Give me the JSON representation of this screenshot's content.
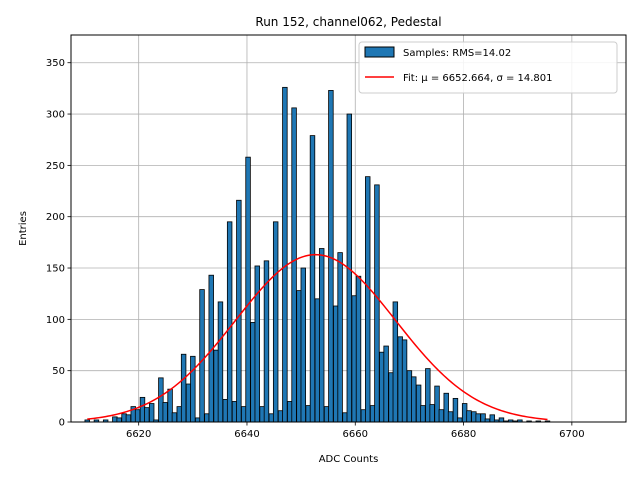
{
  "chart_data": {
    "type": "bar",
    "title": "Run 152, channel062, Pedestal",
    "xlabel": "ADC Counts",
    "ylabel": "Entries",
    "xlim": [
      6607.5,
      6710
    ],
    "ylim": [
      0,
      377
    ],
    "xticks": [
      6620,
      6640,
      6660,
      6680,
      6700
    ],
    "yticks": [
      0,
      50,
      100,
      150,
      200,
      250,
      300,
      350
    ],
    "grid": true,
    "legend_position": "top-right",
    "bin_width": 0.85,
    "colors": {
      "bar": "#1f77b4",
      "edge": "#000000",
      "fit": "#ff0000",
      "grid": "#b0b0b0"
    },
    "series": [
      {
        "name": "Samples: RMS=14.02",
        "kind": "histogram",
        "bins": [
          [
            6610.5,
            2
          ],
          [
            6611.3,
            0
          ],
          [
            6612.2,
            2
          ],
          [
            6613.0,
            0
          ],
          [
            6613.9,
            2
          ],
          [
            6614.7,
            0
          ],
          [
            6615.6,
            5
          ],
          [
            6616.4,
            4
          ],
          [
            6617.3,
            8
          ],
          [
            6618.1,
            7
          ],
          [
            6619.0,
            15
          ],
          [
            6619.8,
            12
          ],
          [
            6620.7,
            24
          ],
          [
            6621.5,
            14
          ],
          [
            6622.4,
            18
          ],
          [
            6623.2,
            2
          ],
          [
            6624.1,
            43
          ],
          [
            6624.9,
            19
          ],
          [
            6625.8,
            32
          ],
          [
            6626.6,
            9
          ],
          [
            6627.5,
            15
          ],
          [
            6628.3,
            66
          ],
          [
            6629.2,
            37
          ],
          [
            6630.0,
            64
          ],
          [
            6630.9,
            4
          ],
          [
            6631.7,
            129
          ],
          [
            6632.6,
            8
          ],
          [
            6633.4,
            143
          ],
          [
            6634.3,
            70
          ],
          [
            6635.1,
            117
          ],
          [
            6636.0,
            22
          ],
          [
            6636.8,
            195
          ],
          [
            6637.7,
            20
          ],
          [
            6638.5,
            216
          ],
          [
            6639.4,
            15
          ],
          [
            6640.2,
            258
          ],
          [
            6641.1,
            97
          ],
          [
            6641.9,
            152
          ],
          [
            6642.8,
            15
          ],
          [
            6643.6,
            157
          ],
          [
            6644.5,
            8
          ],
          [
            6645.3,
            195
          ],
          [
            6646.2,
            11
          ],
          [
            6647.0,
            326
          ],
          [
            6647.9,
            20
          ],
          [
            6648.7,
            306
          ],
          [
            6649.6,
            128
          ],
          [
            6650.4,
            150
          ],
          [
            6651.3,
            16
          ],
          [
            6652.1,
            279
          ],
          [
            6653.0,
            120
          ],
          [
            6653.8,
            169
          ],
          [
            6654.7,
            15
          ],
          [
            6655.5,
            323
          ],
          [
            6656.4,
            113
          ],
          [
            6657.2,
            165
          ],
          [
            6658.1,
            9
          ],
          [
            6658.9,
            300
          ],
          [
            6659.8,
            123
          ],
          [
            6660.6,
            142
          ],
          [
            6661.5,
            12
          ],
          [
            6662.3,
            239
          ],
          [
            6663.2,
            16
          ],
          [
            6664.0,
            231
          ],
          [
            6664.9,
            68
          ],
          [
            6665.7,
            74
          ],
          [
            6666.6,
            48
          ],
          [
            6667.4,
            117
          ],
          [
            6668.3,
            83
          ],
          [
            6669.1,
            80
          ],
          [
            6670.0,
            50
          ],
          [
            6670.8,
            44
          ],
          [
            6671.7,
            36
          ],
          [
            6672.5,
            16
          ],
          [
            6673.4,
            52
          ],
          [
            6674.2,
            17
          ],
          [
            6675.1,
            35
          ],
          [
            6675.9,
            12
          ],
          [
            6676.8,
            28
          ],
          [
            6677.6,
            10
          ],
          [
            6678.5,
            23
          ],
          [
            6679.3,
            4
          ],
          [
            6680.2,
            18
          ],
          [
            6681.0,
            11
          ],
          [
            6681.9,
            10
          ],
          [
            6682.7,
            8
          ],
          [
            6683.6,
            8
          ],
          [
            6684.4,
            3
          ],
          [
            6685.3,
            7
          ],
          [
            6686.1,
            2
          ],
          [
            6687.0,
            4
          ],
          [
            6687.8,
            1
          ],
          [
            6688.7,
            2
          ],
          [
            6689.5,
            1
          ],
          [
            6690.4,
            2
          ],
          [
            6691.2,
            0
          ],
          [
            6692.1,
            1
          ],
          [
            6692.9,
            0
          ],
          [
            6693.8,
            1
          ],
          [
            6694.6,
            0
          ],
          [
            6695.5,
            1
          ]
        ]
      },
      {
        "name": "Fit: μ = 6652.664, σ = 14.801",
        "kind": "gaussian",
        "mu": 6652.664,
        "sigma": 14.801,
        "amplitude": 163,
        "x_range": [
          6610.5,
          6695.5
        ]
      }
    ]
  }
}
